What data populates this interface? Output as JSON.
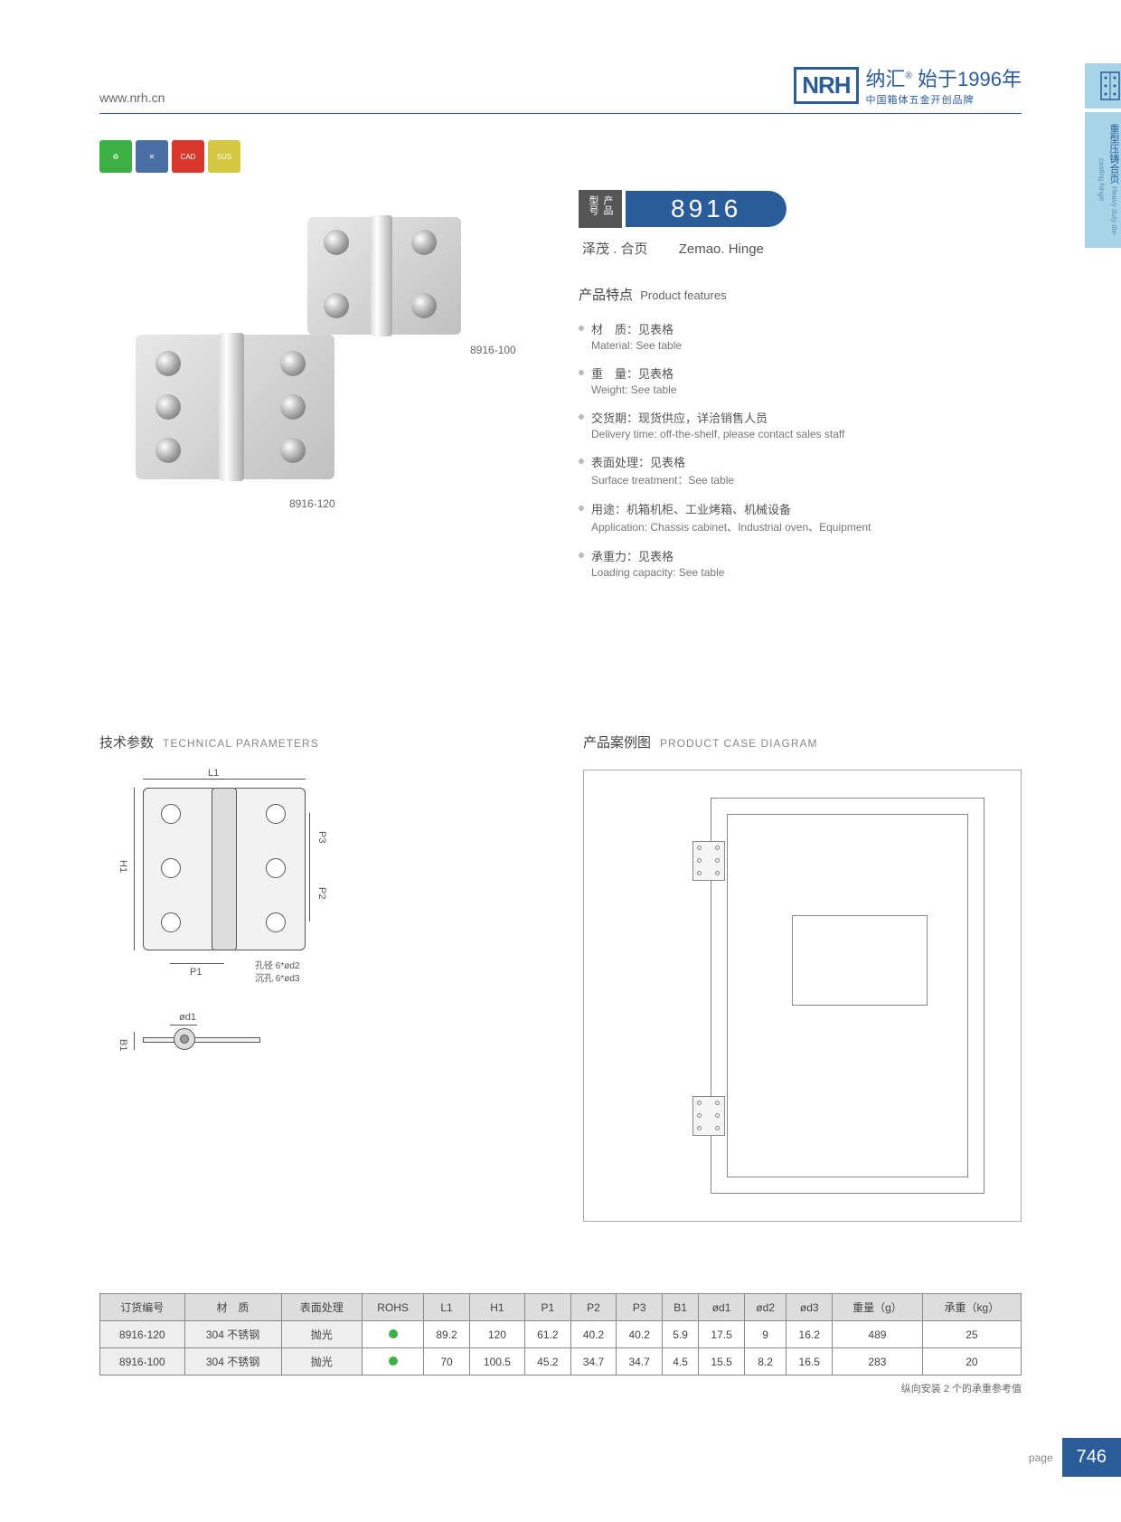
{
  "header": {
    "url": "www.nrh.cn",
    "logo": "NRH",
    "logo_cn": "纳汇",
    "logo_year": "始于1996年",
    "logo_sub": "中国箱体五金开创品牌"
  },
  "side_tab": {
    "cn": "重型压铸合页",
    "en": "Heavy duty die-casting hinge"
  },
  "badges": [
    "green",
    "blue",
    "CAD",
    "SUS"
  ],
  "product": {
    "model_label": "产品型号",
    "model": "8916",
    "name_cn": "泽茂 . 合页",
    "name_en": "Zemao. Hinge",
    "img_label_1": "8916-100",
    "img_label_2": "8916-120"
  },
  "features": {
    "title_cn": "产品特点",
    "title_en": "Product features",
    "items": [
      {
        "cn": "材　质：见表格",
        "en": "Material: See table"
      },
      {
        "cn": "重　量：见表格",
        "en": "Weight: See table"
      },
      {
        "cn": "交货期：现货供应，详洽销售人员",
        "en": "Delivery time: off-the-shelf, please contact sales staff"
      },
      {
        "cn": "表面处理：见表格",
        "en": "Surface treatment：See table"
      },
      {
        "cn": "用途：机箱机柜、工业烤箱、机械设备",
        "en": "Application: Chassis cabinet、Industrial oven、Equipment"
      },
      {
        "cn": "承重力：见表格",
        "en": "Loading capacity: See table"
      }
    ]
  },
  "tech": {
    "title_cn": "技术参数",
    "title_en": "TECHNICAL PARAMETERS",
    "labels": {
      "L1": "L1",
      "H1": "H1",
      "P1": "P1",
      "P2": "P2",
      "P3": "P3",
      "B1": "B1",
      "od1": "ød1",
      "note1": "孔径 6*ød2",
      "note2": "沉孔 6*ød3"
    }
  },
  "case": {
    "title_cn": "产品案例图",
    "title_en": "PRODUCT CASE DIAGRAM"
  },
  "table": {
    "headers": [
      "订货编号",
      "材　质",
      "表面处理",
      "ROHS",
      "L1",
      "H1",
      "P1",
      "P2",
      "P3",
      "B1",
      "ød1",
      "ød2",
      "ød3",
      "重量（g）",
      "承重（kg）"
    ],
    "rows": [
      [
        "8916-120",
        "304 不锈钢",
        "抛光",
        "dot",
        "89.2",
        "120",
        "61.2",
        "40.2",
        "40.2",
        "5.9",
        "17.5",
        "9",
        "16.2",
        "489",
        "25"
      ],
      [
        "8916-100",
        "304 不锈钢",
        "抛光",
        "dot",
        "70",
        "100.5",
        "45.2",
        "34.7",
        "34.7",
        "4.5",
        "15.5",
        "8.2",
        "16.5",
        "283",
        "20"
      ]
    ],
    "note": "纵向安装 2 个的承重参考值"
  },
  "footer": {
    "page_label": "page",
    "page": "746"
  }
}
